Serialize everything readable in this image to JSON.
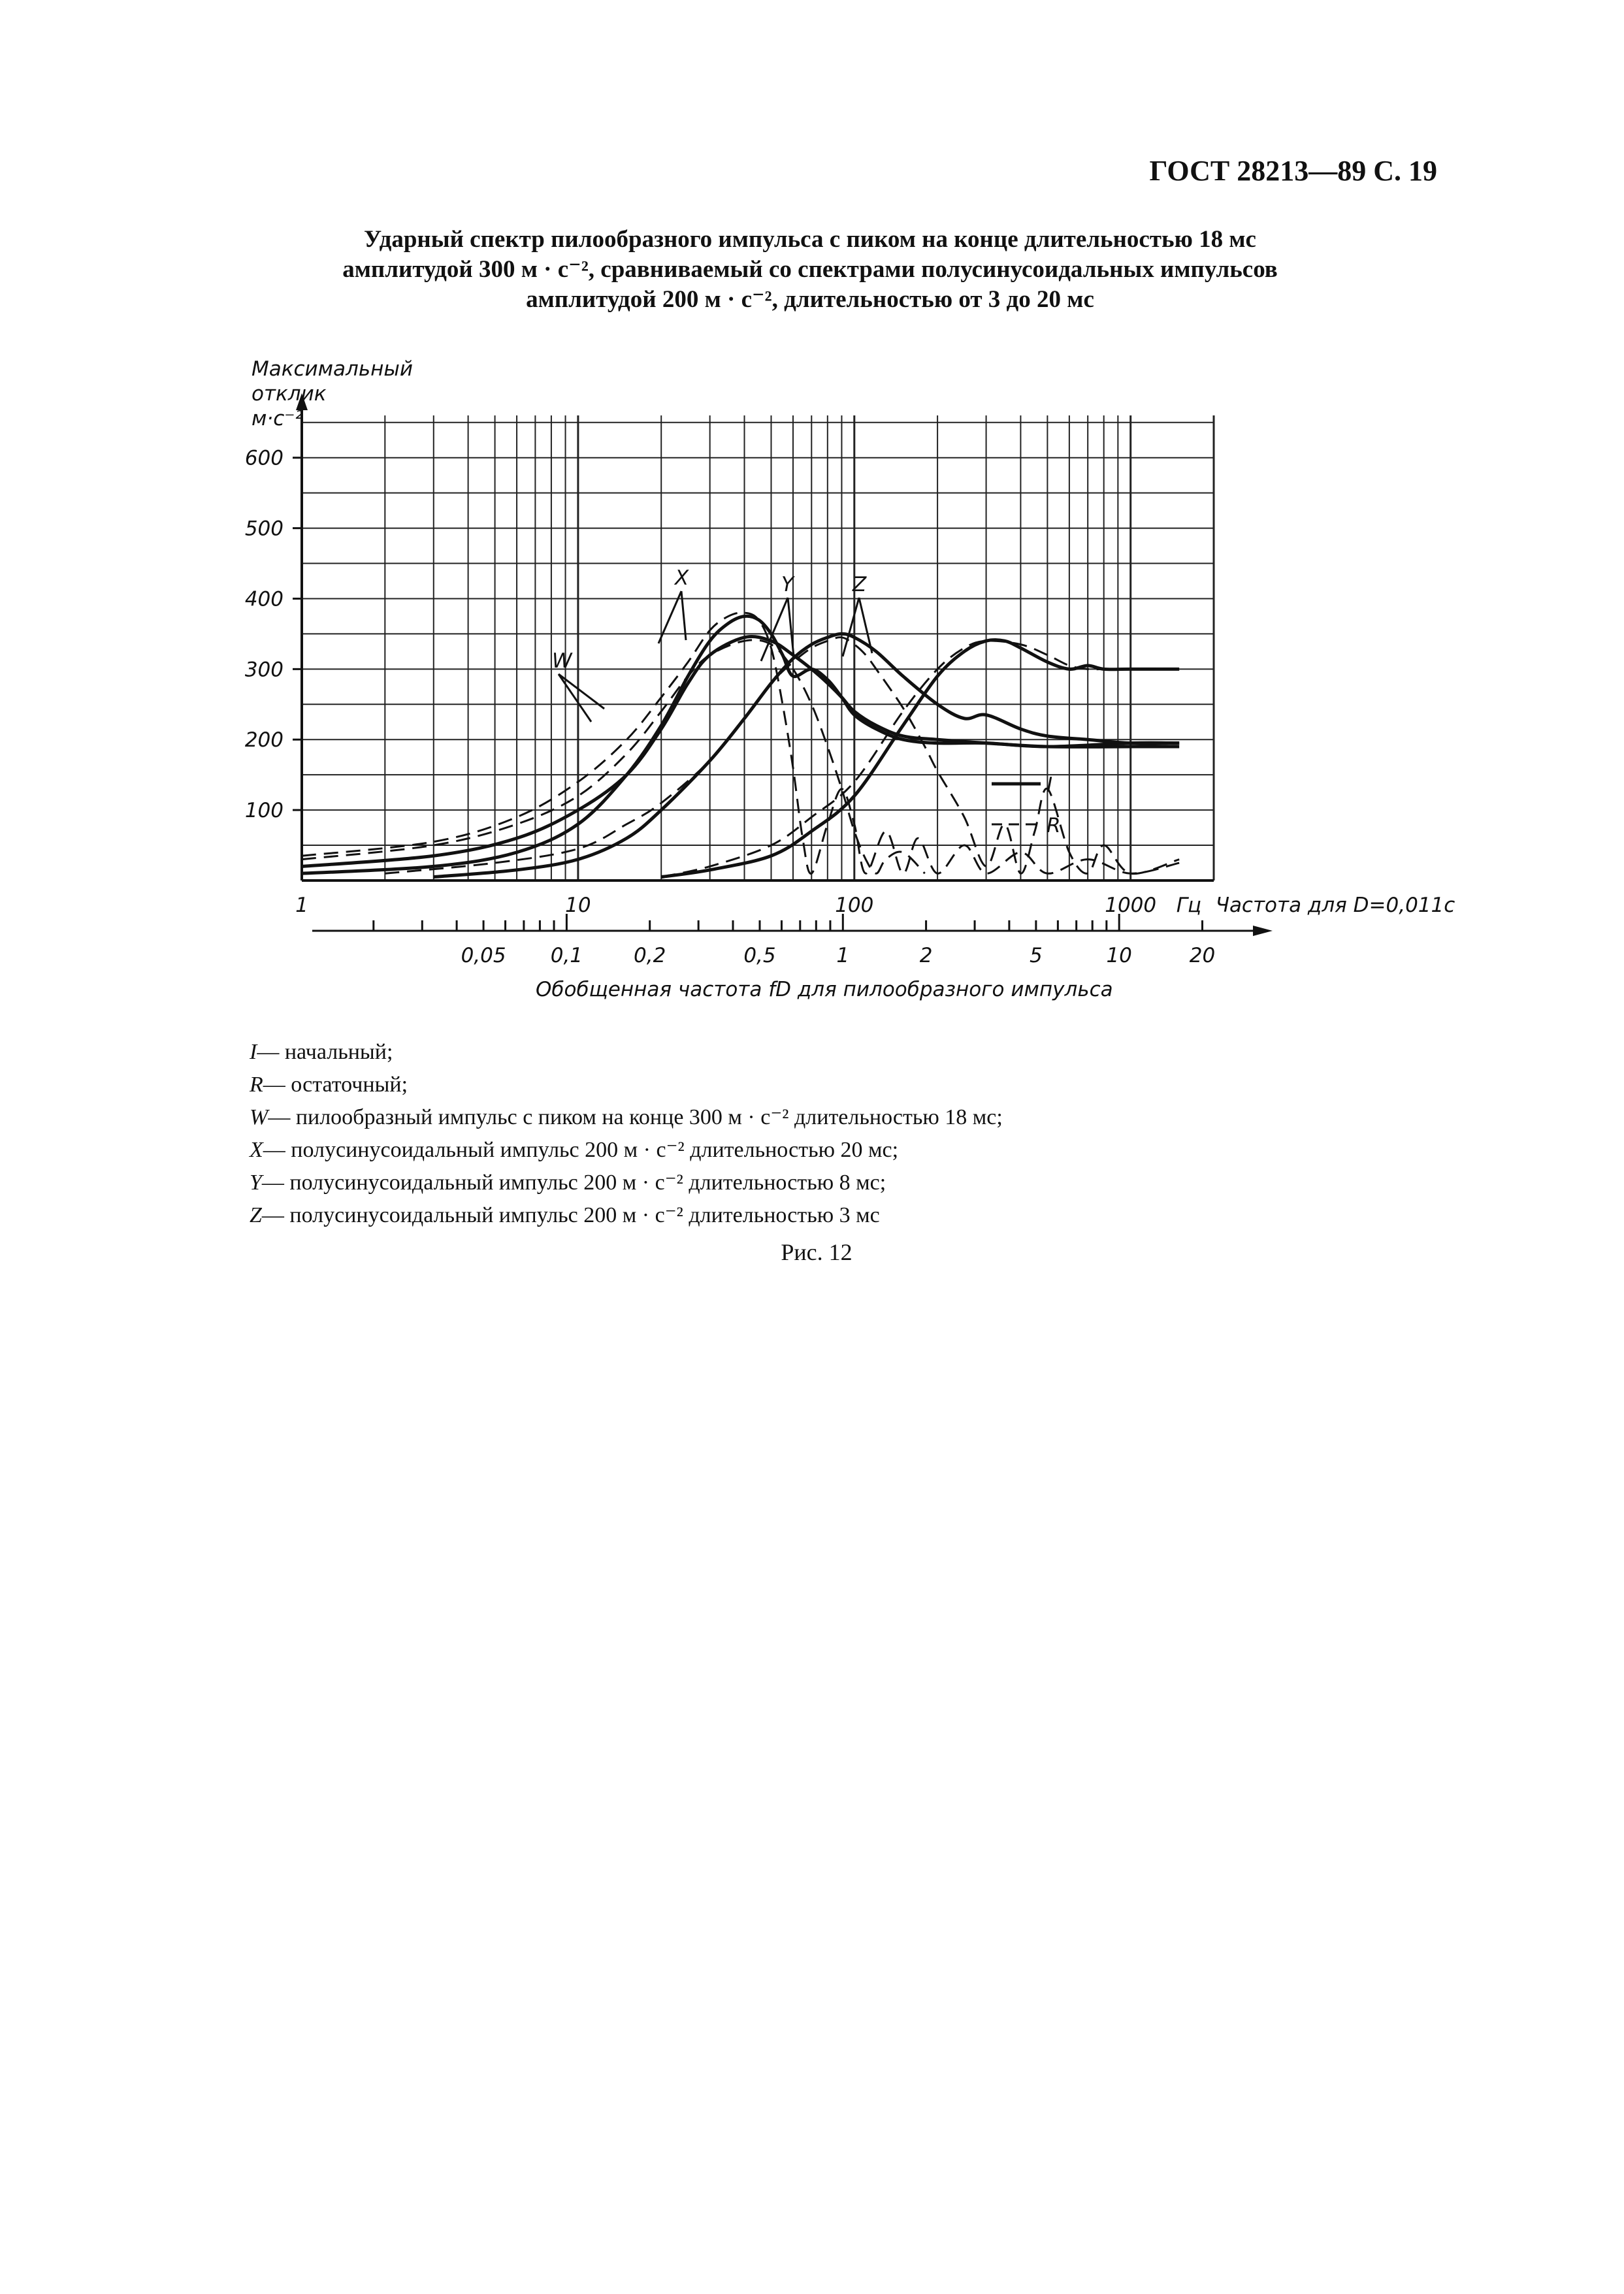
{
  "header": "ГОСТ 28213—89 С. 19",
  "title_lines": [
    "Ударный спектр пилообразного импульса с пиком на конце длительностью 18 мс",
    "амплитудой 300 м · с⁻², сравниваемый со спектрами полусинусоидальных импульсов",
    "амплитудой 200 м · с⁻², длительностью от 3 до 20 мс"
  ],
  "chart_data": {
    "type": "line",
    "ylabel_lines": [
      "Максимальный",
      "отклик",
      "м·с⁻²"
    ],
    "xlabel": "Частота для D=0,011с",
    "x_unit": "Гц",
    "x_scale": "log",
    "xlim": [
      1,
      2000
    ],
    "ylim": [
      0,
      660
    ],
    "x_tick_labels": [
      {
        "value": 1,
        "label": "1"
      },
      {
        "value": 10,
        "label": "10"
      },
      {
        "value": 100,
        "label": "100"
      },
      {
        "value": 1000,
        "label": "1000"
      }
    ],
    "y_tick_labels": [
      "100",
      "200",
      "300",
      "400",
      "500",
      "600"
    ],
    "y_tick_values": [
      100,
      200,
      300,
      400,
      500,
      600
    ],
    "secondary_xlabel": "Обобщенная частота fD для пилообразного импульса",
    "secondary_x_tick_labels": [
      {
        "value": 0.05,
        "label": "0,05"
      },
      {
        "value": 0.1,
        "label": "0,1"
      },
      {
        "value": 0.2,
        "label": "0,2"
      },
      {
        "value": 0.5,
        "label": "0,5"
      },
      {
        "value": 1,
        "label": "1"
      },
      {
        "value": 2,
        "label": "2"
      },
      {
        "value": 5,
        "label": "5"
      },
      {
        "value": 10,
        "label": "10"
      },
      {
        "value": 20,
        "label": "20"
      }
    ],
    "grid": true,
    "curve_labels": [
      "W",
      "X",
      "Y",
      "Z"
    ],
    "line_style_legend": [
      {
        "key": "I",
        "style": "solid"
      },
      {
        "key": "R",
        "style": "dashed"
      }
    ],
    "series": [
      {
        "label": "W",
        "style": "solid",
        "x": [
          1,
          3,
          6,
          10,
          15,
          20,
          25,
          30,
          40,
          50,
          60,
          70,
          80,
          90,
          100,
          120,
          150,
          200,
          300,
          500,
          1000,
          1500
        ],
        "y": [
          20,
          35,
          60,
          100,
          150,
          215,
          280,
          320,
          345,
          340,
          320,
          300,
          280,
          260,
          240,
          220,
          205,
          200,
          195,
          190,
          190,
          190
        ]
      },
      {
        "label": "W",
        "style": "dashed",
        "x": [
          1,
          3,
          6,
          10,
          15,
          20,
          25,
          30,
          40,
          50,
          60,
          70,
          80,
          90,
          100,
          110,
          120,
          130,
          150,
          180
        ],
        "y": [
          30,
          50,
          80,
          120,
          180,
          240,
          290,
          320,
          340,
          335,
          300,
          250,
          190,
          130,
          70,
          30,
          10,
          30,
          40,
          10
        ]
      },
      {
        "label": "X",
        "style": "solid",
        "x": [
          1,
          3,
          6,
          10,
          15,
          20,
          25,
          30,
          35,
          40,
          45,
          50,
          55,
          60,
          70,
          80,
          90,
          100,
          120,
          150,
          200,
          300,
          500,
          1000,
          1500
        ],
        "y": [
          10,
          20,
          40,
          80,
          150,
          220,
          290,
          340,
          365,
          375,
          370,
          350,
          320,
          290,
          300,
          285,
          260,
          235,
          215,
          200,
          195,
          195,
          190,
          195,
          195
        ]
      },
      {
        "label": "X",
        "style": "dashed",
        "x": [
          1,
          3,
          6,
          10,
          15,
          20,
          25,
          30,
          35,
          40,
          45,
          50,
          55,
          60,
          65,
          70,
          80,
          90,
          100,
          110,
          130,
          150,
          170,
          200,
          250,
          300,
          400,
          500,
          700,
          1000,
          1500
        ],
        "y": [
          35,
          55,
          90,
          140,
          200,
          260,
          310,
          355,
          375,
          380,
          370,
          330,
          250,
          160,
          60,
          10,
          80,
          130,
          80,
          10,
          70,
          10,
          60,
          10,
          50,
          10,
          40,
          10,
          30,
          10,
          25
        ]
      },
      {
        "label": "Y",
        "style": "solid",
        "x": [
          3,
          6,
          10,
          15,
          20,
          30,
          40,
          50,
          60,
          70,
          80,
          90,
          100,
          120,
          150,
          200,
          250,
          300,
          400,
          500,
          700,
          1000,
          1500
        ],
        "y": [
          5,
          15,
          30,
          60,
          100,
          170,
          230,
          280,
          315,
          335,
          345,
          350,
          345,
          325,
          290,
          250,
          230,
          235,
          215,
          205,
          200,
          195,
          195
        ]
      },
      {
        "label": "Y",
        "style": "dashed",
        "x": [
          2,
          5,
          10,
          15,
          20,
          30,
          40,
          50,
          60,
          70,
          80,
          90,
          100,
          110,
          120,
          150,
          180,
          200,
          250,
          300,
          350,
          400,
          450,
          500,
          600,
          700,
          800,
          1000,
          1500
        ],
        "y": [
          10,
          25,
          45,
          80,
          110,
          170,
          230,
          280,
          310,
          330,
          340,
          345,
          335,
          320,
          300,
          245,
          190,
          155,
          90,
          20,
          80,
          10,
          70,
          130,
          40,
          10,
          50,
          10,
          30
        ]
      },
      {
        "label": "Z",
        "style": "solid",
        "x": [
          20,
          30,
          50,
          70,
          100,
          150,
          200,
          250,
          300,
          350,
          400,
          500,
          600,
          700,
          800,
          1000,
          1500
        ],
        "y": [
          5,
          15,
          35,
          70,
          120,
          220,
          290,
          325,
          340,
          340,
          330,
          310,
          300,
          305,
          300,
          300,
          300
        ]
      },
      {
        "label": "Z",
        "style": "dashed",
        "x": [
          20,
          30,
          50,
          70,
          100,
          150,
          200,
          250,
          300,
          400,
          500,
          600,
          700,
          800,
          1000,
          1500
        ],
        "y": [
          5,
          20,
          50,
          90,
          140,
          240,
          300,
          330,
          340,
          335,
          320,
          305,
          300,
          300,
          300,
          300
        ]
      }
    ]
  },
  "legend_notes": [
    {
      "key": "I",
      "text": "— начальный;"
    },
    {
      "key": "R",
      "text": "— остаточный;"
    },
    {
      "key": "W",
      "text": "— пилообразный импульс с пиком на конце 300 м · с⁻² длительностью 18 мс;"
    },
    {
      "key": "X",
      "text": "— полусинусоидальный импульс 200 м · с⁻² длительностью 20 мс;"
    },
    {
      "key": "Y",
      "text": "— полусинусоидальный импульс 200 м · с⁻² длительностью 8 мс;"
    },
    {
      "key": "Z",
      "text": "— полусинусоидальный импульс 200 м · с⁻² длительностью 3 мс"
    }
  ],
  "figure_caption": "Рис. 12"
}
